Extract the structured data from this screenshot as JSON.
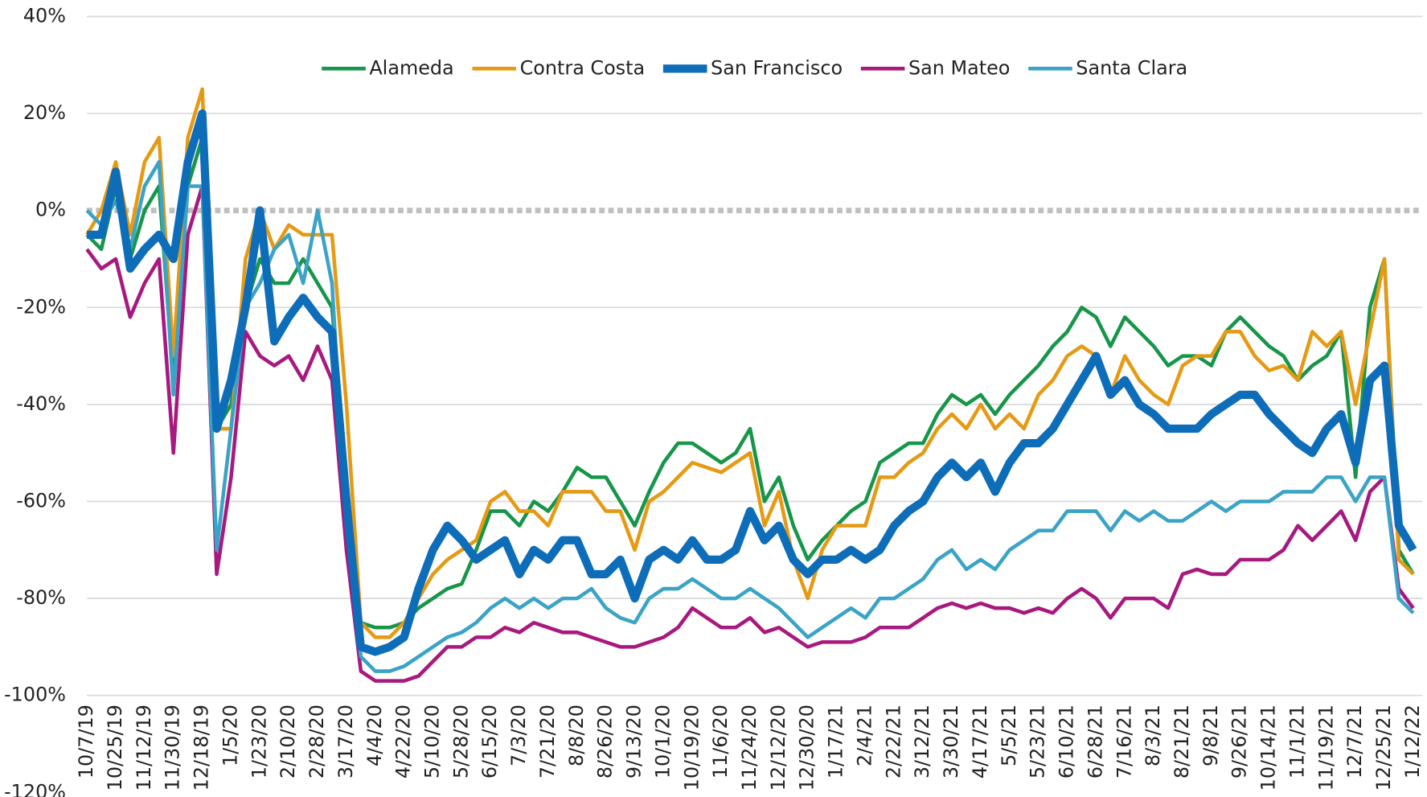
{
  "chart_data": {
    "type": "line",
    "categories": [
      "10/7/19",
      null,
      "10/25/19",
      null,
      "11/12/19",
      null,
      "11/30/19",
      null,
      "12/18/19",
      null,
      "1/5/20",
      null,
      "1/23/20",
      null,
      "2/10/20",
      null,
      "2/28/20",
      null,
      "3/17/20",
      null,
      "4/4/20",
      null,
      "4/22/20",
      null,
      "5/10/20",
      null,
      "5/28/20",
      null,
      "6/15/20",
      null,
      "7/3/20",
      null,
      "7/21/20",
      null,
      "8/8/20",
      null,
      "8/26/20",
      null,
      "9/13/20",
      null,
      "10/1/20",
      null,
      "10/19/20",
      null,
      "11/6/20",
      null,
      "11/24/20",
      null,
      "12/12/20",
      null,
      "12/30/20",
      null,
      "1/17/21",
      null,
      "2/4/21",
      null,
      "2/22/21",
      null,
      "3/12/21",
      null,
      "3/30/21",
      null,
      "4/17/21",
      null,
      "5/5/21",
      null,
      "5/23/21",
      null,
      "6/10/21",
      null,
      "6/28/21",
      null,
      "7/16/21",
      null,
      "8/3/21",
      null,
      "8/21/21",
      null,
      "9/8/21",
      null,
      "9/26/21",
      null,
      "10/14/21",
      null,
      "11/1/21",
      null,
      "11/19/21",
      null,
      "12/7/21",
      null,
      "12/25/21",
      null,
      "1/12/22"
    ],
    "series": [
      {
        "name": "Alameda",
        "color": "#17964a",
        "values": [
          -5,
          -8,
          5,
          -10,
          0,
          5,
          -35,
          5,
          15,
          -45,
          -40,
          -20,
          -10,
          -15,
          -15,
          -10,
          -15,
          -20,
          -55,
          -85,
          -86,
          -86,
          -85,
          -82,
          -80,
          -78,
          -77,
          -70,
          -62,
          -62,
          -65,
          -60,
          -62,
          -58,
          -53,
          -55,
          -55,
          -60,
          -65,
          -58,
          -52,
          -48,
          -48,
          -50,
          -52,
          -50,
          -45,
          -60,
          -55,
          -65,
          -72,
          -68,
          -65,
          -62,
          -60,
          -52,
          -50,
          -48,
          -48,
          -42,
          -38,
          -40,
          -38,
          -42,
          -38,
          -35,
          -32,
          -28,
          -25,
          -20,
          -22,
          -28,
          -22,
          -25,
          -28,
          -32,
          -30,
          -30,
          -32,
          -25,
          -22,
          -25,
          -28,
          -30,
          -35,
          -32,
          -30,
          -25,
          -55,
          -20,
          -10,
          -70,
          -75
        ]
      },
      {
        "name": "Contra Costa",
        "color": "#e69a14",
        "values": [
          -5,
          0,
          10,
          -5,
          10,
          15,
          -30,
          15,
          25,
          -45,
          -45,
          -10,
          0,
          -8,
          -3,
          -5,
          -5,
          -5,
          -40,
          -85,
          -88,
          -88,
          -85,
          -80,
          -75,
          -72,
          -70,
          -68,
          -60,
          -58,
          -62,
          -62,
          -65,
          -58,
          -58,
          -58,
          -62,
          -62,
          -70,
          -60,
          -58,
          -55,
          -52,
          -53,
          -54,
          -52,
          -50,
          -65,
          -58,
          -72,
          -80,
          -70,
          -65,
          -65,
          -65,
          -55,
          -55,
          -52,
          -50,
          -45,
          -42,
          -45,
          -40,
          -45,
          -42,
          -45,
          -38,
          -35,
          -30,
          -28,
          -30,
          -38,
          -30,
          -35,
          -38,
          -40,
          -32,
          -30,
          -30,
          -25,
          -25,
          -30,
          -33,
          -32,
          -35,
          -25,
          -28,
          -25,
          -40,
          -25,
          -10,
          -72,
          -75
        ]
      },
      {
        "name": "San Francisco",
        "color": "#0e6db8",
        "values": [
          -5,
          -5,
          8,
          -12,
          -8,
          -5,
          -10,
          10,
          20,
          -45,
          -35,
          -20,
          0,
          -27,
          -22,
          -18,
          -22,
          -25,
          -60,
          -90,
          -91,
          -90,
          -88,
          -78,
          -70,
          -65,
          -68,
          -72,
          -70,
          -68,
          -75,
          -70,
          -72,
          -68,
          -68,
          -75,
          -75,
          -72,
          -80,
          -72,
          -70,
          -72,
          -68,
          -72,
          -72,
          -70,
          -62,
          -68,
          -65,
          -72,
          -75,
          -72,
          -72,
          -70,
          -72,
          -70,
          -65,
          -62,
          -60,
          -55,
          -52,
          -55,
          -52,
          -58,
          -52,
          -48,
          -48,
          -45,
          -40,
          -35,
          -30,
          -38,
          -35,
          -40,
          -42,
          -45,
          -45,
          -45,
          -42,
          -40,
          -38,
          -38,
          -42,
          -45,
          -48,
          -50,
          -45,
          -42,
          -52,
          -35,
          -32,
          -65,
          -70
        ]
      },
      {
        "name": "San Mateo",
        "color": "#a8197f",
        "values": [
          -8,
          -12,
          -10,
          -22,
          -15,
          -10,
          -50,
          -5,
          5,
          -75,
          -55,
          -25,
          -30,
          -32,
          -30,
          -35,
          -28,
          -35,
          -70,
          -95,
          -97,
          -97,
          -97,
          -96,
          -93,
          -90,
          -90,
          -88,
          -88,
          -86,
          -87,
          -85,
          -86,
          -87,
          -87,
          -88,
          -89,
          -90,
          -90,
          -89,
          -88,
          -86,
          -82,
          -84,
          -86,
          -86,
          -84,
          -87,
          -86,
          -88,
          -90,
          -89,
          -89,
          -89,
          -88,
          -86,
          -86,
          -86,
          -84,
          -82,
          -81,
          -82,
          -81,
          -82,
          -82,
          -83,
          -82,
          -83,
          -80,
          -78,
          -80,
          -84,
          -80,
          -80,
          -80,
          -82,
          -75,
          -74,
          -75,
          -75,
          -72,
          -72,
          -72,
          -70,
          -65,
          -68,
          -65,
          -62,
          -68,
          -58,
          -55,
          -78,
          -82
        ]
      },
      {
        "name": "Santa Clara",
        "color": "#3aa3c6",
        "values": [
          0,
          -3,
          2,
          -8,
          5,
          10,
          -38,
          5,
          5,
          -70,
          -45,
          -20,
          -15,
          -8,
          -5,
          -15,
          0,
          -15,
          -65,
          -92,
          -95,
          -95,
          -94,
          -92,
          -90,
          -88,
          -87,
          -85,
          -82,
          -80,
          -82,
          -80,
          -82,
          -80,
          -80,
          -78,
          -82,
          -84,
          -85,
          -80,
          -78,
          -78,
          -76,
          -78,
          -80,
          -80,
          -78,
          -80,
          -82,
          -85,
          -88,
          -86,
          -84,
          -82,
          -84,
          -80,
          -80,
          -78,
          -76,
          -72,
          -70,
          -74,
          -72,
          -74,
          -70,
          -68,
          -66,
          -66,
          -62,
          -62,
          -62,
          -66,
          -62,
          -64,
          -62,
          -64,
          -64,
          -62,
          -60,
          -62,
          -60,
          -60,
          -60,
          -58,
          -58,
          -58,
          -55,
          -55,
          -60,
          -55,
          -55,
          -80,
          -83
        ]
      }
    ],
    "ylim": [
      -120,
      40
    ],
    "yticks": [
      {
        "value": -120,
        "label": "-120%"
      },
      {
        "value": -100,
        "label": "-100%"
      },
      {
        "value": -80,
        "label": "-80%"
      },
      {
        "value": -60,
        "label": "-60%"
      },
      {
        "value": -40,
        "label": "-40%"
      },
      {
        "value": -20,
        "label": "-20%"
      },
      {
        "value": 0,
        "label": "0%"
      },
      {
        "value": 20,
        "label": "20%"
      },
      {
        "value": 40,
        "label": "40%"
      }
    ],
    "grid": true,
    "legend": "top"
  }
}
